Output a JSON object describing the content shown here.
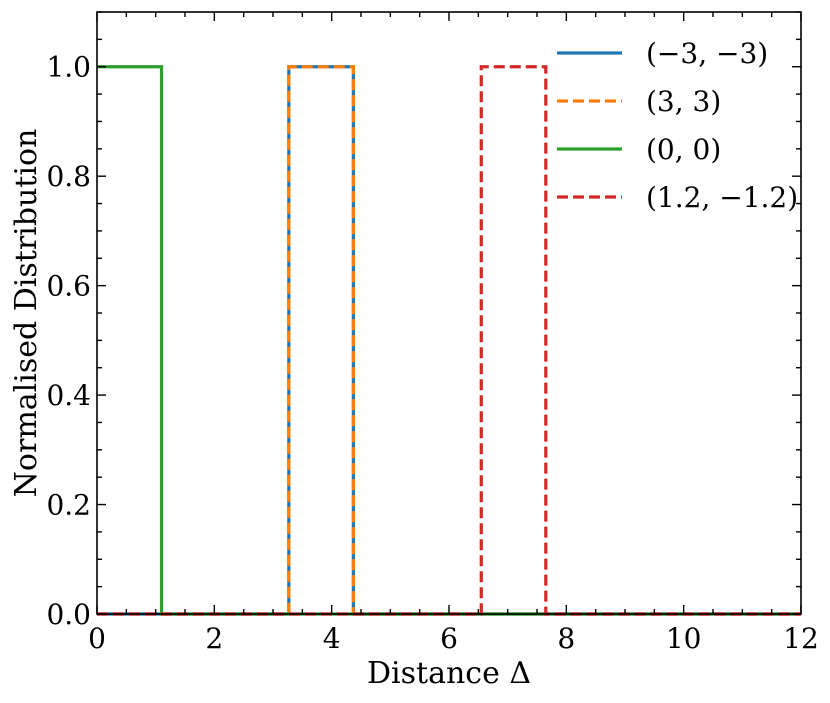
{
  "chart_data": {
    "type": "line",
    "title": "",
    "xlabel": "Distance Δ",
    "ylabel": "Normalised Distribution",
    "xlim": [
      0,
      12
    ],
    "ylim": [
      0,
      1.1
    ],
    "x_ticks": [
      0,
      2,
      4,
      6,
      8,
      10,
      12
    ],
    "x_tick_labels": [
      "0",
      "2",
      "4",
      "6",
      "8",
      "10",
      "12"
    ],
    "y_ticks": [
      0,
      0.2,
      0.4,
      0.6,
      0.8,
      1.0
    ],
    "y_tick_labels": [
      "0.0",
      "0.2",
      "0.4",
      "0.6",
      "0.8",
      "1.0"
    ],
    "x_minor_step": 0.5,
    "y_minor_step": 0.05,
    "grid": false,
    "legend_position": "top-right",
    "series": [
      {
        "name": "(−3, −3)",
        "color": "#1f77b4",
        "style": "solid",
        "x": [
          0,
          3.27,
          3.27,
          4.37,
          4.37,
          12
        ],
        "y": [
          0,
          0,
          1,
          1,
          0,
          0
        ]
      },
      {
        "name": "(3, 3)",
        "color": "#ff7f0e",
        "style": "dashed",
        "x": [
          0,
          3.27,
          3.27,
          4.37,
          4.37,
          12
        ],
        "y": [
          0,
          0,
          1,
          1,
          0,
          0
        ]
      },
      {
        "name": "(0, 0)",
        "color": "#2ca02c",
        "style": "solid",
        "x": [
          0,
          0,
          1.1,
          1.1,
          12
        ],
        "y": [
          1,
          1,
          1,
          0,
          0
        ]
      },
      {
        "name": "(1.2, −1.2)",
        "color": "#d62728",
        "style": "dashed",
        "x": [
          0,
          6.55,
          6.55,
          7.65,
          7.65,
          12
        ],
        "y": [
          0,
          0,
          1,
          1,
          0,
          0
        ]
      }
    ]
  }
}
